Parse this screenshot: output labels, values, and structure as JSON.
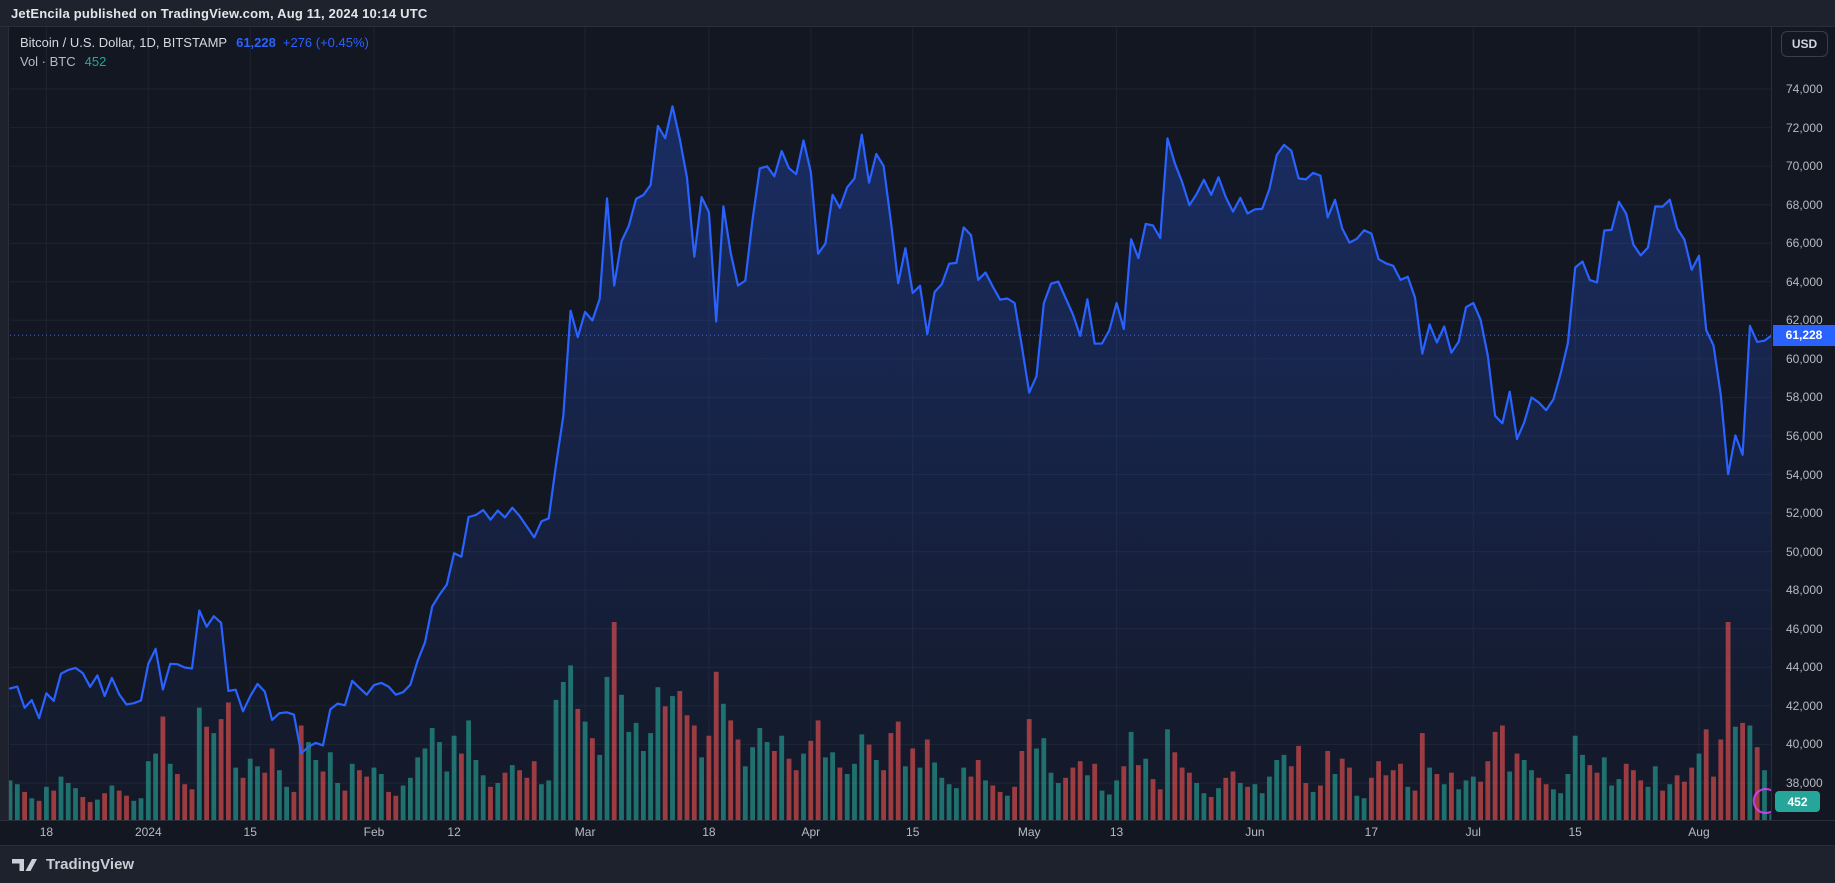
{
  "attribution": "JetEncila published on TradingView.com, Aug 11, 2024 10:14 UTC",
  "header": {
    "symbol_title": "Bitcoin / U.S. Dollar, 1D, BITSTAMP",
    "price": "61,228",
    "change": "+276 (+0.45%)",
    "vol_label": "Vol · BTC",
    "vol_value": "452"
  },
  "price_scale": {
    "currency_button": "USD",
    "last_badge": "61,228",
    "labels": [
      {
        "text": "74,000",
        "value": 74000
      },
      {
        "text": "72,000",
        "value": 72000
      },
      {
        "text": "70,000",
        "value": 70000
      },
      {
        "text": "68,000",
        "value": 68000
      },
      {
        "text": "66,000",
        "value": 66000
      },
      {
        "text": "64,000",
        "value": 64000
      },
      {
        "text": "62,000",
        "value": 62000
      },
      {
        "text": "60,000",
        "value": 60000
      },
      {
        "text": "58,000",
        "value": 58000
      },
      {
        "text": "56,000",
        "value": 56000
      },
      {
        "text": "54,000",
        "value": 54000
      },
      {
        "text": "52,000",
        "value": 52000
      },
      {
        "text": "50,000",
        "value": 50000
      },
      {
        "text": "48,000",
        "value": 48000
      },
      {
        "text": "46,000",
        "value": 46000
      },
      {
        "text": "44,000",
        "value": 44000
      },
      {
        "text": "42,000",
        "value": 42000
      },
      {
        "text": "40,000",
        "value": 40000
      },
      {
        "text": "38,000",
        "value": 38000
      }
    ]
  },
  "time_axis": {
    "labels": [
      {
        "text": "18",
        "day": 5
      },
      {
        "text": "2024",
        "day": 19
      },
      {
        "text": "15",
        "day": 33
      },
      {
        "text": "Feb",
        "day": 50
      },
      {
        "text": "12",
        "day": 61
      },
      {
        "text": "Mar",
        "day": 79
      },
      {
        "text": "18",
        "day": 96
      },
      {
        "text": "Apr",
        "day": 110
      },
      {
        "text": "15",
        "day": 124
      },
      {
        "text": "May",
        "day": 140
      },
      {
        "text": "13",
        "day": 152
      },
      {
        "text": "Jun",
        "day": 171
      },
      {
        "text": "17",
        "day": 187
      },
      {
        "text": "Jul",
        "day": 201
      },
      {
        "text": "15",
        "day": 215
      },
      {
        "text": "Aug",
        "day": 232
      }
    ]
  },
  "footer": {
    "brand": "TradingView"
  },
  "colors": {
    "accent": "#2962FF",
    "vol_up": "#26a69a",
    "vol_down": "#ef5350",
    "vol_opacity": 0.62,
    "grid": "#1e2330",
    "ring": "#e040fb",
    "bg": "#131722",
    "panel": "#1e222d"
  },
  "chart_data": {
    "type": "line",
    "title": "Bitcoin / U.S. Dollar, 1D, BITSTAMP",
    "x_start_date": "2023-12-13",
    "x_end_date": "2024-08-11",
    "ylim": [
      36100,
      77200
    ],
    "y_ticks": [
      38000,
      40000,
      42000,
      44000,
      46000,
      48000,
      50000,
      52000,
      54000,
      56000,
      58000,
      60000,
      62000,
      64000,
      66000,
      68000,
      70000,
      72000,
      74000
    ],
    "grid": true,
    "legend_position": "top-left",
    "last": {
      "price": 61228,
      "change": 276,
      "change_pct": 0.45,
      "volume_btc": 452
    },
    "series": [
      {
        "name": "close_usd",
        "values": [
          42900,
          43000,
          41900,
          42300,
          41360,
          42660,
          42260,
          43670,
          43860,
          43970,
          43700,
          42990,
          43580,
          42520,
          43450,
          42600,
          42070,
          42140,
          42280,
          44180,
          44960,
          42850,
          44180,
          44160,
          43990,
          43940,
          46950,
          46110,
          46650,
          46310,
          42780,
          42840,
          41720,
          42500,
          43140,
          42740,
          41270,
          41620,
          41670,
          41550,
          39540,
          39880,
          40080,
          39950,
          41820,
          42120,
          42030,
          43300,
          42940,
          42580,
          43080,
          43190,
          43000,
          42580,
          42710,
          43100,
          44350,
          45300,
          47150,
          47770,
          48290,
          49920,
          49740,
          51800,
          51900,
          52160,
          51660,
          52130,
          51780,
          52280,
          51850,
          51300,
          50740,
          51570,
          51730,
          54500,
          57040,
          62500,
          61130,
          62440,
          61990,
          63110,
          68330,
          63800,
          66100,
          66900,
          68300,
          68500,
          69020,
          72080,
          71450,
          73100,
          71400,
          69400,
          65300,
          68390,
          67610,
          61940,
          67910,
          65500,
          63800,
          64060,
          67240,
          69880,
          69990,
          69470,
          70780,
          69890,
          69580,
          71330,
          69700,
          65450,
          65980,
          68510,
          67840,
          68900,
          69360,
          71630,
          69140,
          70630,
          70010,
          67120,
          63920,
          65740,
          63420,
          63790,
          61280,
          63470,
          63870,
          64940,
          64980,
          66820,
          66420,
          64100,
          64480,
          63750,
          63070,
          63130,
          62900,
          60640,
          58250,
          59100,
          62880,
          63900,
          64010,
          63160,
          62310,
          61190,
          63090,
          60790,
          60800,
          61480,
          62900,
          61550,
          66210,
          65230,
          67000,
          66920,
          66270,
          71440,
          70150,
          69180,
          67970,
          68550,
          69290,
          68510,
          69420,
          68380,
          67640,
          68350,
          67540,
          67760,
          67780,
          68810,
          70570,
          71100,
          70800,
          69360,
          69310,
          69650,
          69510,
          67340,
          68250,
          66770,
          66030,
          66230,
          66670,
          66500,
          65170,
          64960,
          64830,
          64100,
          64260,
          63180,
          60270,
          61790,
          60850,
          61680,
          60320,
          60890,
          62680,
          62900,
          62030,
          60170,
          57050,
          56660,
          58300,
          55850,
          56700,
          58000,
          57740,
          57340,
          57900,
          59230,
          60830,
          64740,
          65050,
          64090,
          63970,
          66660,
          66690,
          68150,
          67530,
          65930,
          65370,
          65780,
          67910,
          67900,
          68260,
          66780,
          66190,
          64620,
          65350,
          61500,
          60700,
          58120,
          54020,
          56030,
          55030,
          61710,
          60880,
          60945,
          61228
        ]
      },
      {
        "name": "volume_btc",
        "values": [
          3100,
          2800,
          2200,
          1700,
          1500,
          2600,
          2300,
          3400,
          2900,
          2500,
          1800,
          1400,
          1600,
          2100,
          2700,
          2300,
          1900,
          1500,
          1700,
          4600,
          5200,
          8100,
          4400,
          3600,
          2800,
          2400,
          8800,
          7300,
          6800,
          7900,
          9200,
          4100,
          3300,
          4800,
          4200,
          3700,
          5600,
          3900,
          2600,
          2200,
          7400,
          6100,
          4700,
          3800,
          5300,
          2900,
          2300,
          4400,
          3900,
          3400,
          4100,
          3600,
          2200,
          1900,
          2700,
          3300,
          4900,
          5600,
          7200,
          6100,
          3800,
          6600,
          5200,
          7800,
          4700,
          3500,
          2600,
          2900,
          3700,
          4300,
          3900,
          3300,
          4600,
          2800,
          3100,
          9400,
          10800,
          12100,
          8700,
          7700,
          6400,
          5100,
          11200,
          15500,
          9800,
          6900,
          7600,
          5400,
          6800,
          10400,
          8900,
          9700,
          10100,
          8200,
          7400,
          4900,
          6600,
          11600,
          9100,
          7800,
          6300,
          4200,
          5700,
          7200,
          6100,
          5400,
          6600,
          4800,
          3900,
          5200,
          6200,
          7800,
          4900,
          5300,
          4100,
          3600,
          4400,
          6700,
          5900,
          4700,
          3900,
          6800,
          7700,
          4200,
          5600,
          4100,
          6300,
          4500,
          3300,
          2800,
          2500,
          4100,
          3400,
          4700,
          3100,
          2700,
          2200,
          1900,
          2600,
          5400,
          7900,
          5600,
          6400,
          3700,
          2900,
          3300,
          4100,
          4600,
          3500,
          4400,
          2300,
          2000,
          3100,
          4200,
          6900,
          4300,
          4800,
          3200,
          2400,
          7100,
          5300,
          4100,
          3700,
          2900,
          2100,
          1800,
          2500,
          3300,
          3800,
          2900,
          2600,
          2800,
          2100,
          3400,
          4700,
          5100,
          4200,
          5800,
          2900,
          2200,
          2700,
          5400,
          3600,
          4800,
          4100,
          1900,
          1700,
          3300,
          4600,
          3500,
          3900,
          4400,
          2600,
          2300,
          6800,
          4100,
          3600,
          2800,
          3700,
          2400,
          3100,
          3400,
          3000,
          4600,
          6900,
          7400,
          3800,
          5200,
          4700,
          3900,
          3300,
          2800,
          2400,
          2100,
          3600,
          6600,
          5100,
          4300,
          3700,
          4900,
          2700,
          3200,
          4400,
          3900,
          3100,
          2600,
          4200,
          2300,
          2800,
          3500,
          3000,
          4100,
          5200,
          7100,
          3400,
          6300,
          15500,
          7300,
          7600,
          7400,
          5700,
          3900,
          452
        ]
      }
    ]
  }
}
